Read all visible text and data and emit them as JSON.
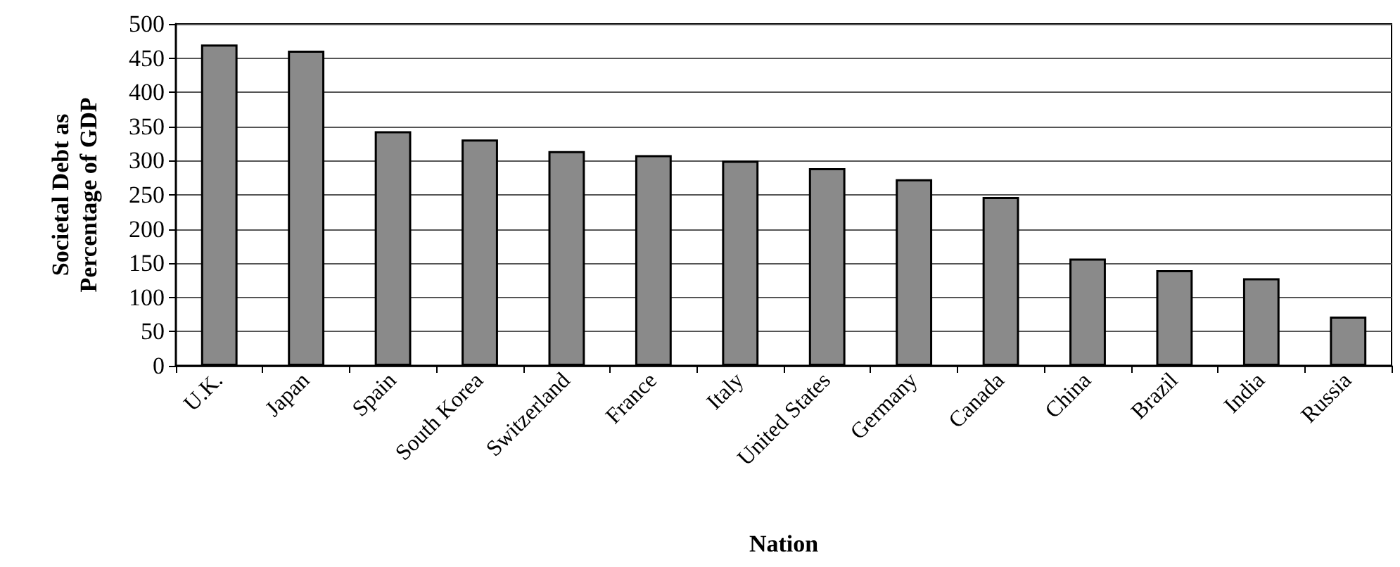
{
  "chart_data": {
    "type": "bar",
    "xlabel": "Nation",
    "ylabel": "Societal Debt as\nPercentage of GDP",
    "categories": [
      "U.K.",
      "Japan",
      "Spain",
      "South Korea",
      "Switzerland",
      "France",
      "Italy",
      "United States",
      "Germany",
      "Canada",
      "China",
      "Brazil",
      "India",
      "Russia"
    ],
    "values": [
      470,
      461,
      343,
      331,
      314,
      308,
      300,
      289,
      273,
      247,
      157,
      140,
      128,
      72
    ],
    "color": "#8a8a8a",
    "ylim": [
      0,
      500
    ],
    "yticks": [
      0,
      50,
      100,
      150,
      200,
      250,
      300,
      350,
      400,
      450,
      500
    ],
    "grid": "y"
  }
}
